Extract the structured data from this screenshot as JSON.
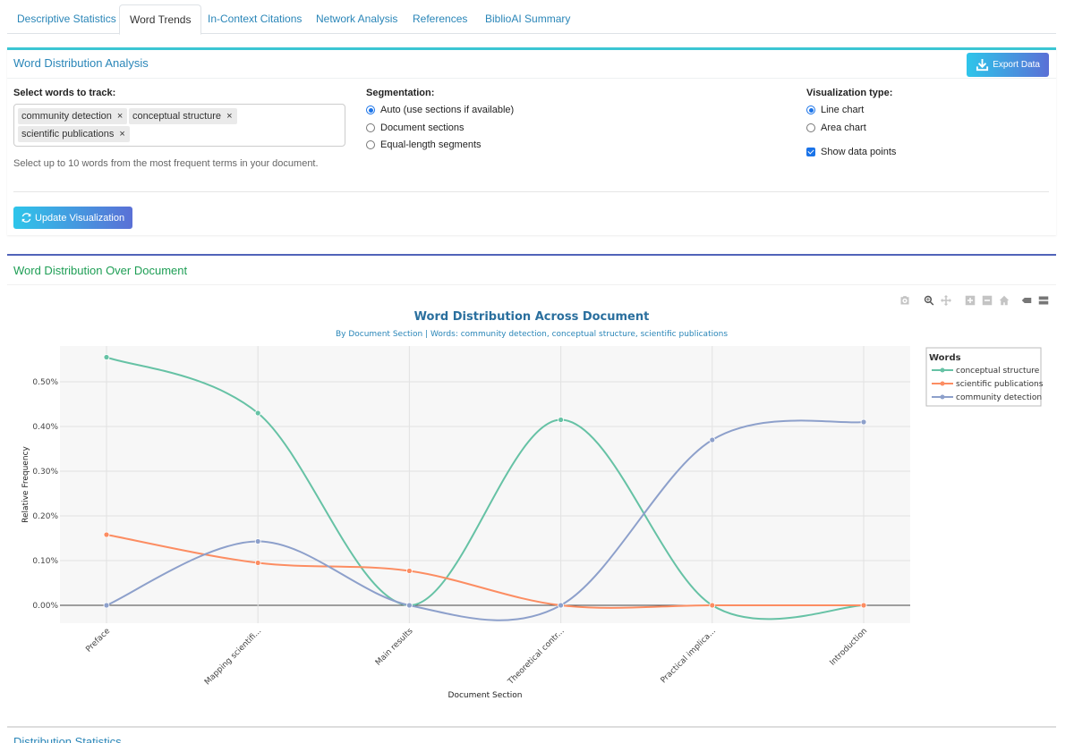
{
  "tabs": [
    {
      "label": "Descriptive Statistics"
    },
    {
      "label": "Word Trends"
    },
    {
      "label": "In-Context Citations"
    },
    {
      "label": "Network Analysis"
    },
    {
      "label": "References"
    },
    {
      "label": "BiblioAI Summary"
    }
  ],
  "analysis_panel": {
    "title": "Word Distribution Analysis",
    "export_label": "Export Data",
    "words_label": "Select words to track:",
    "selected_words": [
      "community detection",
      "conceptual structure",
      "scientific publications"
    ],
    "remove_symbol": "×",
    "help_text": "Select up to 10 words from the most frequent terms in your document.",
    "segmentation_label": "Segmentation:",
    "segmentation_options": [
      "Auto (use sections if available)",
      "Document sections",
      "Equal-length segments"
    ],
    "segmentation_selected": 0,
    "viz_label": "Visualization type:",
    "viz_options": [
      "Line chart",
      "Area chart"
    ],
    "viz_selected": 0,
    "show_points_label": "Show data points",
    "show_points": true,
    "update_label": "Update Visualization"
  },
  "chart_panel": {
    "title": "Word Distribution Over Document"
  },
  "stats_panel": {
    "title": "Distribution Statistics"
  },
  "colors": {
    "link": "#2a86b8",
    "accent_start": "#2ec5ea",
    "accent_end": "#5a70d6",
    "conceptual_structure": "#66c2a5",
    "scientific_publications": "#fc8d62",
    "community_detection": "#8da0cb"
  },
  "chart_data": {
    "type": "line",
    "title": "Word Distribution Across Document",
    "subtitle": "By Document Section | Words: community detection, conceptual structure, scientific publications",
    "xlabel": "Document Section",
    "ylabel": "Relative Frequency",
    "categories": [
      "Preface",
      "Mapping scientifi...",
      "Main results",
      "Theoretical contr...",
      "Practical implica...",
      "Introduction"
    ],
    "ylim": [
      -0.04,
      0.58
    ],
    "yticks": [
      0,
      0.1,
      0.2,
      0.3,
      0.4,
      0.5
    ],
    "ytick_labels": [
      "0.00%",
      "0.10%",
      "0.20%",
      "0.30%",
      "0.40%",
      "0.50%"
    ],
    "legend_title": "Words",
    "legend_position": "top-right",
    "series": [
      {
        "name": "conceptual structure",
        "color": "#66c2a5",
        "values": [
          0.555,
          0.43,
          0.0,
          0.415,
          0.0,
          0.0
        ]
      },
      {
        "name": "scientific publications",
        "color": "#fc8d62",
        "values": [
          0.158,
          0.095,
          0.077,
          0.0,
          0.0,
          0.0
        ]
      },
      {
        "name": "community detection",
        "color": "#8da0cb",
        "values": [
          0.0,
          0.143,
          0.0,
          0.0,
          0.37,
          0.41
        ]
      }
    ]
  }
}
